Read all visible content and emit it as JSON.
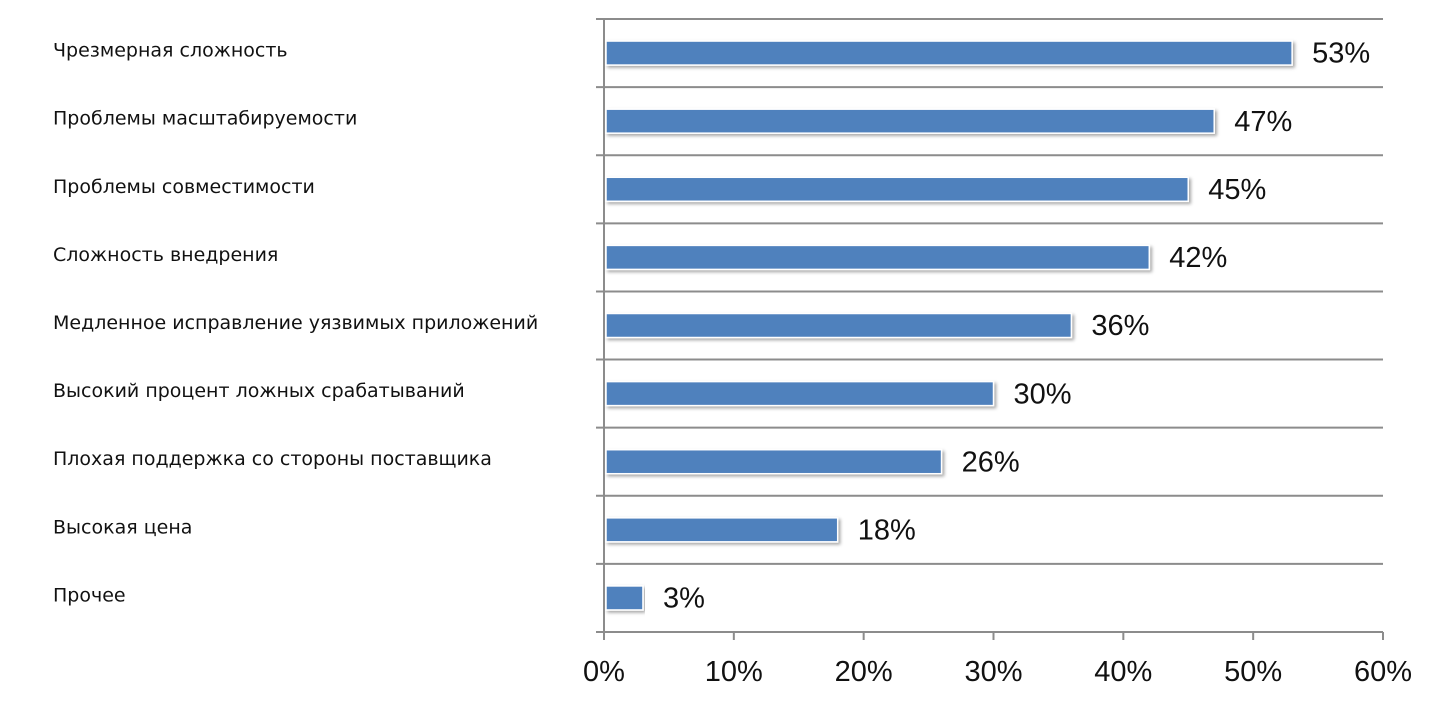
{
  "chart_data": {
    "type": "bar",
    "orientation": "horizontal",
    "categories": [
      "Чрезмерная сложность",
      "Проблемы масштабируемости",
      "Проблемы совместимости",
      "Сложность внедрения",
      "Медленное исправление уязвимых приложений",
      "Высокий процент ложных срабатываний",
      "Плохая поддержка со стороны поставщика",
      "Высокая цена",
      "Прочее"
    ],
    "values": [
      53,
      47,
      45,
      42,
      36,
      30,
      26,
      18,
      3
    ],
    "data_labels": [
      "53%",
      "47%",
      "45%",
      "42%",
      "36%",
      "30%",
      "26%",
      "18%",
      "3%"
    ],
    "xlim": [
      0,
      60
    ],
    "x_ticks": [
      0,
      10,
      20,
      30,
      40,
      50,
      60
    ],
    "x_tick_labels": [
      "0%",
      "10%",
      "20%",
      "30%",
      "40%",
      "50%",
      "60%"
    ],
    "bar_color": "#4f81bd",
    "grid": true,
    "legend": "none",
    "title": "",
    "xlabel": "",
    "ylabel": ""
  }
}
